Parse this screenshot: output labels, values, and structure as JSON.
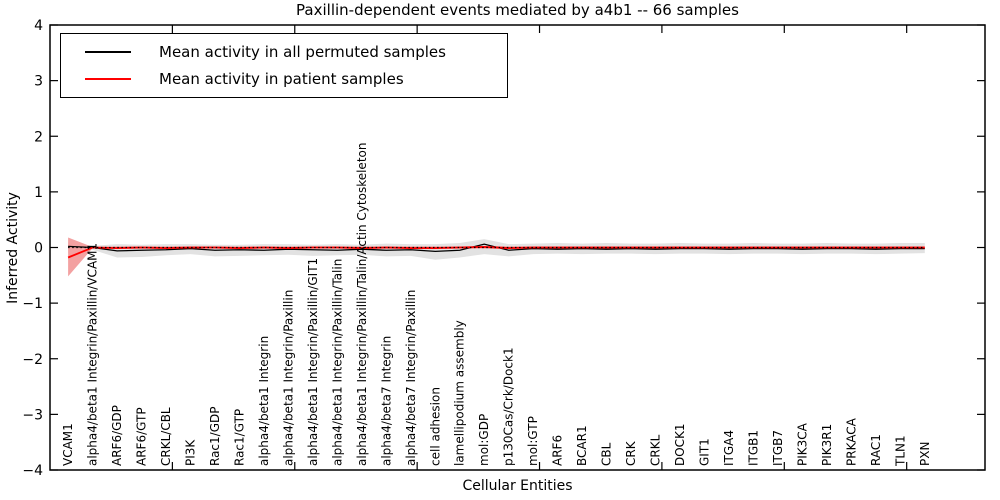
{
  "figure": {
    "background": "#ffffff"
  },
  "chart_data": {
    "type": "line",
    "title": "Paxillin-dependent events mediated by a4b1 -- 66 samples",
    "xlabel": "Cellular Entities",
    "ylabel": "Inferred Activity",
    "xlim": [
      0,
      38.2
    ],
    "ylim": [
      -4,
      4
    ],
    "yticks": [
      -4,
      -3,
      -2,
      -1,
      0,
      1,
      2,
      3,
      4
    ],
    "xticks": [
      5,
      10,
      15,
      20,
      25,
      30,
      35
    ],
    "x_offset": 0.74,
    "grid": false,
    "legend_position": "upper left",
    "categories": [
      "VCAM1",
      "alpha4/beta1 Integrin/Paxillin/VCAM1",
      "ARF6/GDP",
      "ARF6/GTP",
      "CRKL/CBL",
      "PI3K",
      "Rac1/GDP",
      "Rac1/GTP",
      "alpha4/beta1 Integrin",
      "alpha4/beta1 Integrin/Paxillin",
      "alpha4/beta1 Integrin/Paxillin/GIT1",
      "alpha4/beta1 Integrin/Paxillin/Talin",
      "alpha4/beta1 Integrin/Paxillin/Talin/Actin Cytoskeleton",
      "alpha4/beta7 Integrin",
      "alpha4/beta7 Integrin/Paxillin",
      "cell adhesion",
      "lamellipodium assembly",
      "mol:GDP",
      "p130Cas/Crk/Dock1",
      "mol:GTP",
      "ARF6",
      "BCAR1",
      "CBL",
      "CRK",
      "CRKL",
      "DOCK1",
      "GIT1",
      "ITGA4",
      "ITGB1",
      "ITGB7",
      "PIK3CA",
      "PIK3R1",
      "PRKACA",
      "RAC1",
      "TLN1",
      "PXN"
    ],
    "series": [
      {
        "name": "Mean activity in all permuted samples",
        "color": "#000000",
        "style": "solid",
        "values": [
          0.02,
          0.0,
          -0.06,
          -0.05,
          -0.04,
          -0.02,
          -0.05,
          -0.04,
          -0.05,
          -0.03,
          -0.04,
          -0.05,
          -0.03,
          -0.05,
          -0.04,
          -0.07,
          -0.05,
          0.06,
          -0.05,
          -0.02,
          -0.03,
          -0.02,
          -0.03,
          -0.02,
          -0.03,
          -0.02,
          -0.02,
          -0.03,
          -0.02,
          -0.02,
          -0.03,
          -0.02,
          -0.02,
          -0.03,
          -0.02,
          -0.02
        ]
      },
      {
        "name": "Mean activity in patient samples",
        "color": "#ff0000",
        "style": "solid",
        "values": [
          -0.18,
          0.0,
          -0.01,
          0.0,
          -0.01,
          0.0,
          0.0,
          -0.01,
          0.0,
          -0.01,
          0.0,
          0.0,
          -0.01,
          0.0,
          -0.01,
          -0.01,
          0.0,
          0.01,
          -0.01,
          0.0,
          0.0,
          0.0,
          0.0,
          0.0,
          0.0,
          0.0,
          0.0,
          0.0,
          0.0,
          0.0,
          0.0,
          0.0,
          0.0,
          0.0,
          0.0,
          0.0
        ]
      }
    ],
    "bands": [
      {
        "name": "permuted samples range",
        "color": "#e2e2e2",
        "upper": [
          0.1,
          0.03,
          0.06,
          0.05,
          0.06,
          0.06,
          0.05,
          0.05,
          0.06,
          0.06,
          0.05,
          0.06,
          0.05,
          0.07,
          0.06,
          0.06,
          0.08,
          0.15,
          0.06,
          0.07,
          0.08,
          0.07,
          0.08,
          0.07,
          0.07,
          0.08,
          0.07,
          0.07,
          0.08,
          0.07,
          0.07,
          0.08,
          0.07,
          0.07,
          0.08,
          0.08
        ],
        "lower": [
          -0.1,
          -0.04,
          -0.18,
          -0.17,
          -0.14,
          -0.12,
          -0.16,
          -0.15,
          -0.14,
          -0.13,
          -0.15,
          -0.14,
          -0.13,
          -0.16,
          -0.15,
          -0.22,
          -0.18,
          -0.12,
          -0.16,
          -0.12,
          -0.11,
          -0.12,
          -0.11,
          -0.11,
          -0.12,
          -0.11,
          -0.11,
          -0.12,
          -0.11,
          -0.11,
          -0.12,
          -0.11,
          -0.11,
          -0.12,
          -0.11,
          -0.1
        ]
      },
      {
        "name": "patient samples range",
        "color": "#f3a1a1",
        "upper": [
          0.18,
          0.01,
          0.02,
          0.02,
          0.02,
          0.02,
          0.02,
          0.02,
          0.02,
          0.02,
          0.02,
          0.02,
          0.02,
          0.02,
          0.02,
          0.02,
          0.02,
          0.03,
          0.02,
          0.02,
          0.02,
          0.02,
          0.02,
          0.02,
          0.02,
          0.02,
          0.02,
          0.02,
          0.02,
          0.02,
          0.02,
          0.02,
          0.02,
          0.02,
          0.02,
          0.02
        ],
        "lower": [
          -0.52,
          -0.01,
          -0.03,
          -0.02,
          -0.03,
          -0.02,
          -0.02,
          -0.03,
          -0.02,
          -0.03,
          -0.02,
          -0.02,
          -0.03,
          -0.02,
          -0.03,
          -0.03,
          -0.02,
          -0.02,
          -0.03,
          -0.02,
          -0.02,
          -0.02,
          -0.02,
          -0.02,
          -0.02,
          -0.02,
          -0.02,
          -0.02,
          -0.02,
          -0.02,
          -0.02,
          -0.02,
          -0.02,
          -0.02,
          -0.02,
          -0.02
        ]
      }
    ],
    "reference_line": {
      "y": 0,
      "color": "#000000",
      "style": "dotted"
    }
  }
}
